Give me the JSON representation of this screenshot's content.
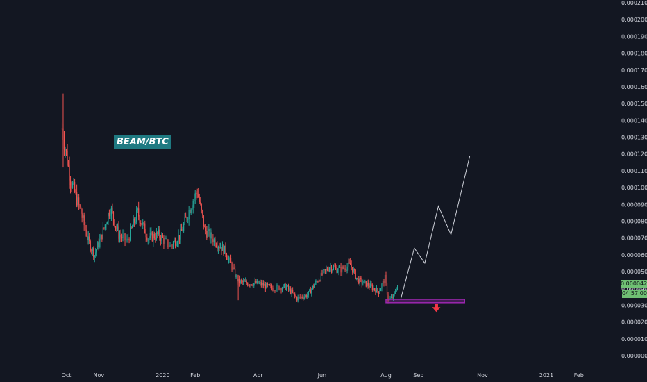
{
  "chart_data": {
    "type": "candlestick",
    "symbol": "BEAM/BTC",
    "y_axis": {
      "ticks": [
        "0.0002100",
        "0.0002000",
        "0.0001900",
        "0.0001800",
        "0.0001700",
        "0.0001600",
        "0.0001500",
        "0.0001400",
        "0.0001300",
        "0.0001200",
        "0.0001100",
        "0.0001000",
        "0.0000900",
        "0.0000800",
        "0.0000700",
        "0.0000600",
        "0.0000500",
        "0.0000400",
        "0.0000300",
        "0.0000200",
        "0.0000100",
        "0.0000000"
      ],
      "range": [
        0.0,
        0.00021
      ]
    },
    "x_axis": {
      "ticks": [
        "Oct",
        "Nov",
        "2020",
        "Feb",
        "Apr",
        "Jun",
        "Aug",
        "Sep",
        "Nov",
        "2021",
        "Feb"
      ]
    },
    "current_price": "0.0000422",
    "countdown": "04:57:00",
    "series": [
      {
        "x": "2019-09-27",
        "close": 0.000135
      },
      {
        "x": "2019-10-05",
        "close": 0.000105
      },
      {
        "x": "2019-10-15",
        "close": 8.5e-05
      },
      {
        "x": "2019-10-22",
        "close": 6.8e-05
      },
      {
        "x": "2019-10-28",
        "close": 6e-05
      },
      {
        "x": "2019-11-03",
        "close": 7e-05
      },
      {
        "x": "2019-11-12",
        "close": 8.8e-05
      },
      {
        "x": "2019-11-20",
        "close": 7.2e-05
      },
      {
        "x": "2019-11-28",
        "close": 6.8e-05
      },
      {
        "x": "2019-12-08",
        "close": 8.5e-05
      },
      {
        "x": "2019-12-18",
        "close": 7e-05
      },
      {
        "x": "2019-12-28",
        "close": 7.2e-05
      },
      {
        "x": "2020-01-08",
        "close": 6.5e-05
      },
      {
        "x": "2020-01-18",
        "close": 7.2e-05
      },
      {
        "x": "2020-01-28",
        "close": 9e-05
      },
      {
        "x": "2020-02-03",
        "close": 9.8e-05
      },
      {
        "x": "2020-02-10",
        "close": 7.5e-05
      },
      {
        "x": "2020-02-20",
        "close": 6.8e-05
      },
      {
        "x": "2020-03-01",
        "close": 6.2e-05
      },
      {
        "x": "2020-03-10",
        "close": 4.8e-05
      },
      {
        "x": "2020-03-13",
        "close": 4.4e-05
      },
      {
        "x": "2020-03-22",
        "close": 4.3e-05
      },
      {
        "x": "2020-04-01",
        "close": 4.3e-05
      },
      {
        "x": "2020-04-15",
        "close": 4e-05
      },
      {
        "x": "2020-04-28",
        "close": 4.1e-05
      },
      {
        "x": "2020-05-08",
        "close": 3.4e-05
      },
      {
        "x": "2020-05-18",
        "close": 3.6e-05
      },
      {
        "x": "2020-05-28",
        "close": 4.5e-05
      },
      {
        "x": "2020-06-08",
        "close": 5.3e-05
      },
      {
        "x": "2020-06-18",
        "close": 5.1e-05
      },
      {
        "x": "2020-06-28",
        "close": 5.4e-05
      },
      {
        "x": "2020-07-05",
        "close": 4.5e-05
      },
      {
        "x": "2020-07-15",
        "close": 4.2e-05
      },
      {
        "x": "2020-07-25",
        "close": 3.8e-05
      },
      {
        "x": "2020-07-31",
        "close": 4.6e-05
      },
      {
        "x": "2020-08-03",
        "close": 3.3e-05
      },
      {
        "x": "2020-08-08",
        "close": 3.5e-05
      },
      {
        "x": "2020-08-12",
        "close": 4.22e-05
      }
    ],
    "annotations": {
      "support_zone": {
        "x_start": "2020-08-01",
        "x_end": "2020-10-15",
        "y_low": 3.15e-05,
        "y_high": 3.35e-05,
        "color": "#9c27b0"
      },
      "down_arrow": {
        "x": "2020-09-18",
        "y": 2.8e-05,
        "color": "#f23645"
      },
      "projection_path": [
        {
          "x": "2020-08-15",
          "y": 3.35e-05
        },
        {
          "x": "2020-08-28",
          "y": 6.4e-05
        },
        {
          "x": "2020-09-07",
          "y": 5.5e-05
        },
        {
          "x": "2020-09-20",
          "y": 8.9e-05
        },
        {
          "x": "2020-10-02",
          "y": 7.2e-05
        },
        {
          "x": "2020-10-20",
          "y": 0.000119
        }
      ]
    },
    "colors": {
      "up": "#26a69a",
      "down": "#ef5350",
      "background": "#131722",
      "axis_text": "#d1d4dc",
      "projection": "#d1d4dc"
    }
  }
}
